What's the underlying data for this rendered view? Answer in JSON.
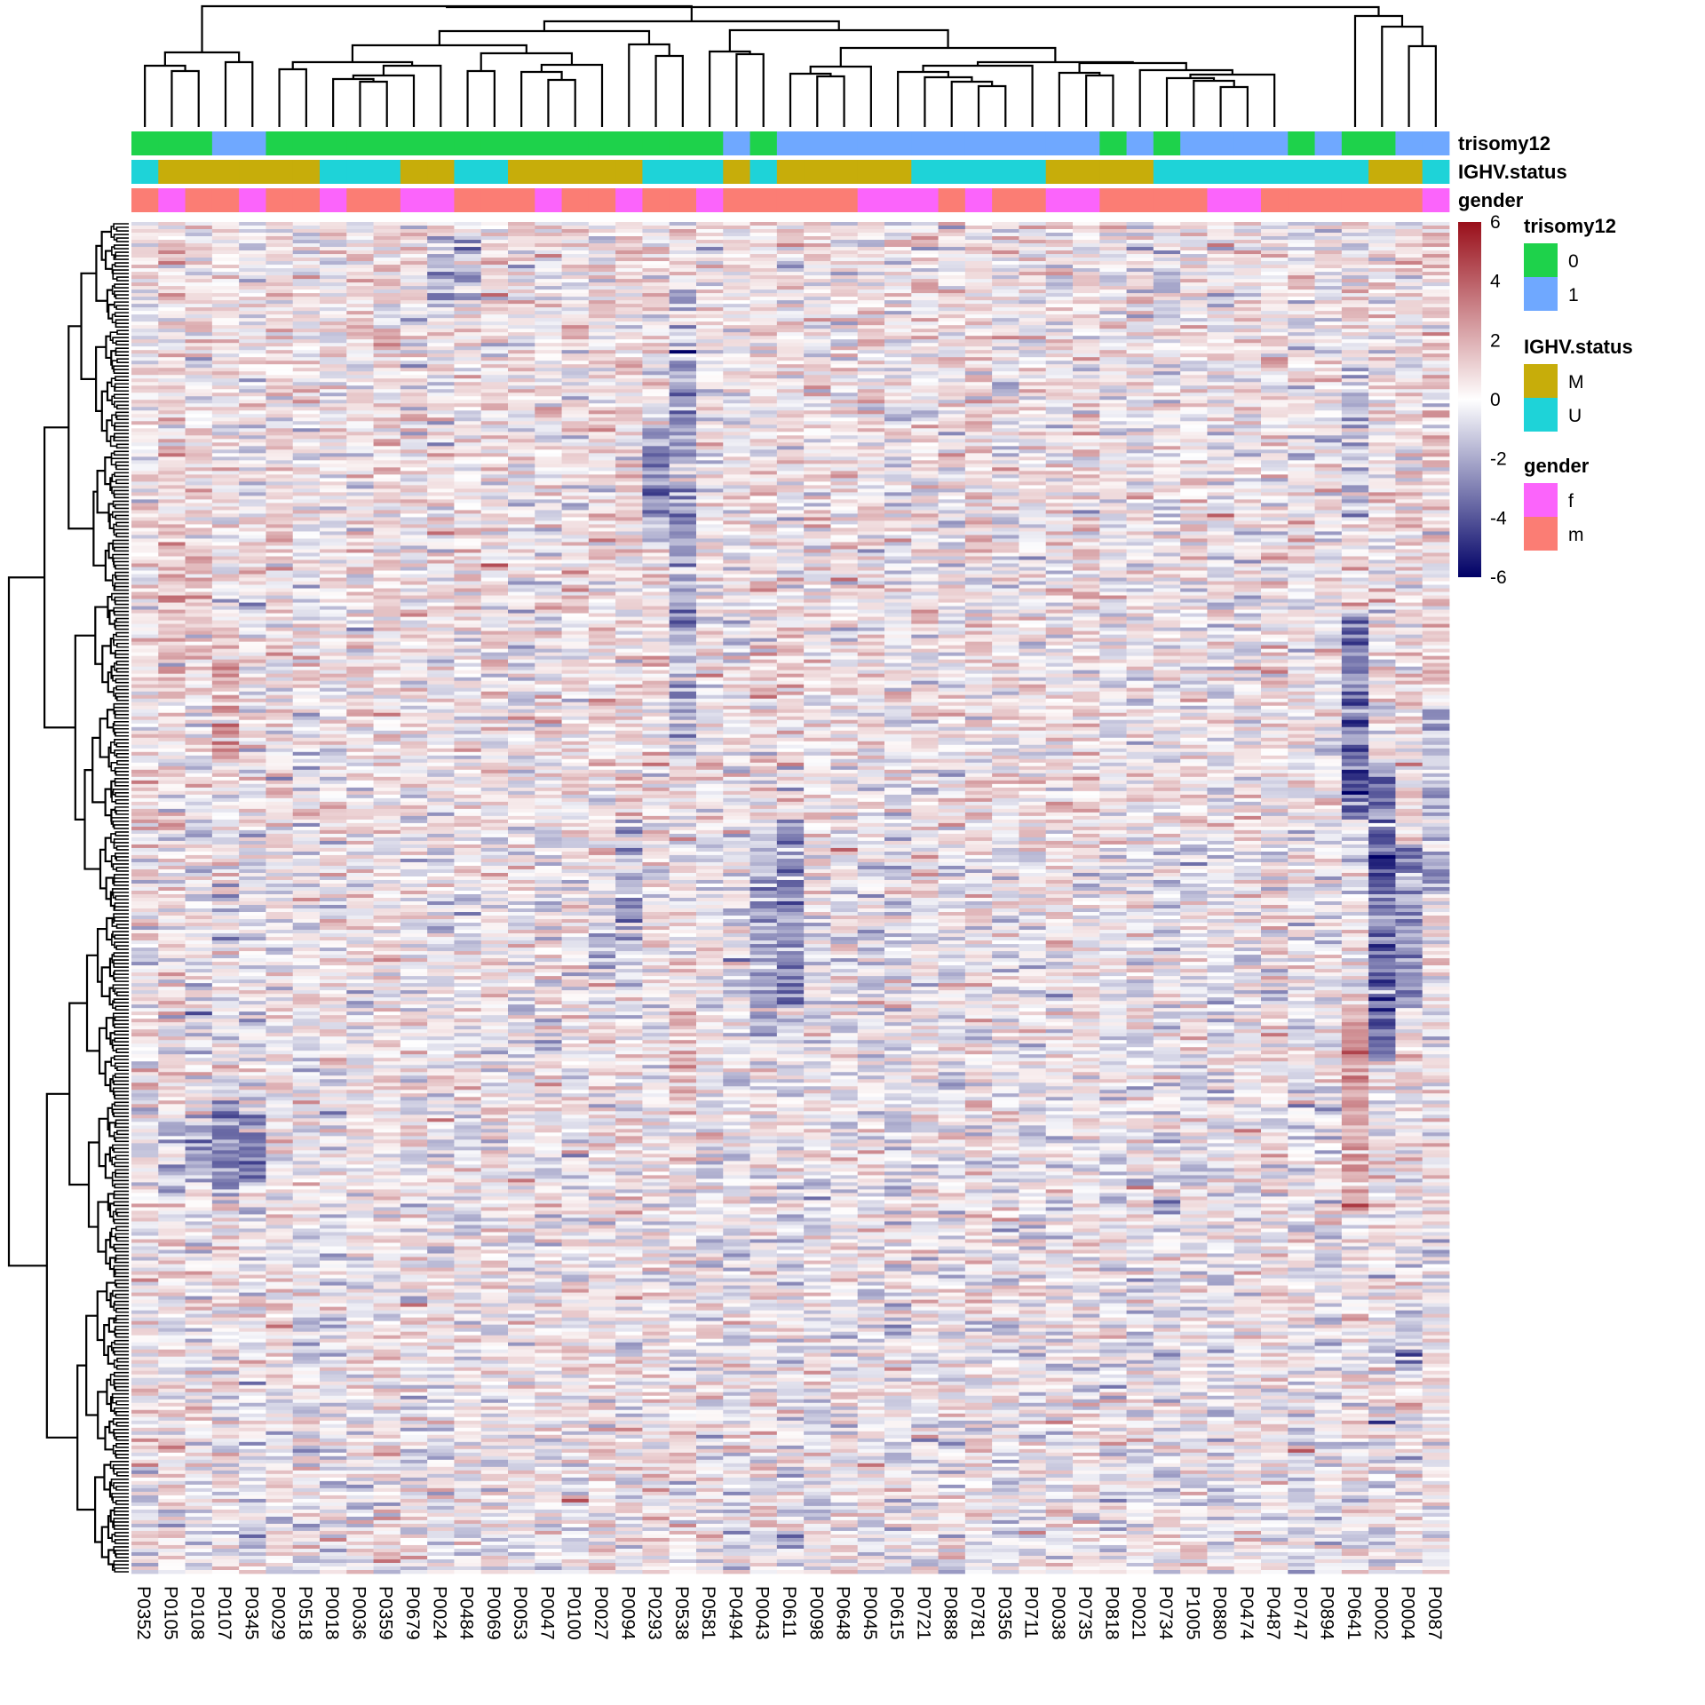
{
  "chart_data": {
    "type": "heatmap",
    "title": "",
    "columns": [
      "P0352",
      "P0105",
      "P0108",
      "P0107",
      "P0345",
      "P0029",
      "P0518",
      "P0018",
      "P0036",
      "P0359",
      "P0679",
      "P0024",
      "P0484",
      "P0069",
      "P0053",
      "P0047",
      "P0100",
      "P0027",
      "P0094",
      "P0293",
      "P0538",
      "P0581",
      "P0494",
      "P0043",
      "P0611",
      "P0098",
      "P0648",
      "P0045",
      "P0615",
      "P0721",
      "P0888",
      "P0781",
      "P0356",
      "P0711",
      "P0038",
      "P0735",
      "P0818",
      "P0021",
      "P0734",
      "P1005",
      "P0880",
      "P0474",
      "P0487",
      "P0747",
      "P0894",
      "P0641",
      "P0002",
      "P0004",
      "P0087"
    ],
    "row_count_approx": 500,
    "row_labels_visible": false,
    "row_dendrogram": true,
    "column_dendrogram": true,
    "color_scale": {
      "min": -6,
      "max": 6,
      "ticks": [
        6,
        4,
        2,
        0,
        -2,
        -4,
        -6
      ],
      "low_color": "#000066",
      "mid_color": "#ffffff",
      "high_color": "#990f1a"
    },
    "annotations": [
      {
        "name": "trisomy12",
        "levels": [
          {
            "label": "0",
            "color": "#1ed24b"
          },
          {
            "label": "1",
            "color": "#6fa8ff"
          }
        ],
        "values": [
          "0",
          "0",
          "0",
          "1",
          "1",
          "0",
          "0",
          "0",
          "0",
          "0",
          "0",
          "0",
          "0",
          "0",
          "0",
          "0",
          "0",
          "0",
          "0",
          "0",
          "0",
          "0",
          "1",
          "0",
          "1",
          "1",
          "1",
          "1",
          "1",
          "1",
          "1",
          "1",
          "1",
          "1",
          "1",
          "1",
          "0",
          "1",
          "0",
          "1",
          "1",
          "1",
          "1",
          "0",
          "1",
          "0",
          "0",
          "1",
          "1"
        ]
      },
      {
        "name": "IGHV.status",
        "levels": [
          {
            "label": "M",
            "color": "#c7ad0a"
          },
          {
            "label": "U",
            "color": "#1ed3d8"
          }
        ],
        "values": [
          "U",
          "M",
          "M",
          "M",
          "M",
          "M",
          "M",
          "U",
          "U",
          "U",
          "M",
          "M",
          "U",
          "U",
          "M",
          "M",
          "M",
          "M",
          "M",
          "U",
          "U",
          "U",
          "M",
          "U",
          "M",
          "M",
          "M",
          "M",
          "M",
          "U",
          "U",
          "U",
          "U",
          "U",
          "M",
          "M",
          "M",
          "M",
          "U",
          "U",
          "U",
          "U",
          "U",
          "U",
          "U",
          "U",
          "M",
          "M",
          "U"
        ]
      },
      {
        "name": "gender",
        "levels": [
          {
            "label": "f",
            "color": "#fb64fb"
          },
          {
            "label": "m",
            "color": "#fb7d74"
          }
        ],
        "values": [
          "m",
          "f",
          "m",
          "m",
          "f",
          "m",
          "m",
          "f",
          "m",
          "m",
          "f",
          "f",
          "m",
          "m",
          "m",
          "f",
          "m",
          "m",
          "f",
          "m",
          "m",
          "f",
          "m",
          "m",
          "m",
          "m",
          "m",
          "f",
          "f",
          "f",
          "m",
          "f",
          "m",
          "m",
          "f",
          "f",
          "m",
          "m",
          "m",
          "m",
          "f",
          "f",
          "m",
          "m",
          "m",
          "m",
          "m",
          "m",
          "f"
        ]
      }
    ],
    "notable_patterns": [
      {
        "column": "P0641",
        "description": "strong negative block in upper-middle rows, strong positive block lower-middle"
      },
      {
        "column": "P0002",
        "description": "strong negative block around middle rows"
      },
      {
        "column": "P0004",
        "description": "negative block in middle rows"
      },
      {
        "column": "P0538",
        "description": "negative bands in upper rows"
      },
      {
        "column": "P0293",
        "description": "negative bands in upper rows"
      },
      {
        "column": "P0107",
        "description": "negative block in lower rows"
      },
      {
        "column": "P0345",
        "description": "negative block in lower rows"
      }
    ],
    "legend_position": "right"
  }
}
